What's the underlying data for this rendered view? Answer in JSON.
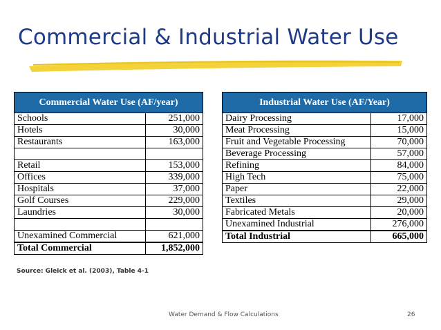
{
  "slide": {
    "title": "Commercial & Industrial Water Use",
    "source": "Source: Gleick et al. (2003), Table 4-1",
    "footer": "Water Demand & Flow Calculations",
    "page_number": "26",
    "colors": {
      "title": "#1f3a86",
      "header_bg": "#1f6ba8",
      "underline": "#f3d23a"
    }
  },
  "commercial": {
    "header": "Commercial Water Use (AF/year)",
    "rows": [
      {
        "label": "Schools",
        "value": "251,000"
      },
      {
        "label": "Hotels",
        "value": "30,000"
      },
      {
        "label": "Restaurants",
        "value": "163,000"
      },
      {
        "label": "",
        "value": ""
      },
      {
        "label": "Retail",
        "value": "153,000"
      },
      {
        "label": "Offices",
        "value": "339,000"
      },
      {
        "label": "Hospitals",
        "value": "37,000"
      },
      {
        "label": "Golf Courses",
        "value": "229,000"
      },
      {
        "label": "Laundries",
        "value": "30,000"
      },
      {
        "label": "",
        "value": ""
      },
      {
        "label": "Unexamined Commercial",
        "value": "621,000"
      }
    ],
    "total": {
      "label": "Total Commercial",
      "value": "1,852,000"
    }
  },
  "industrial": {
    "header": "Industrial Water Use (AF/Year)",
    "rows": [
      {
        "label": "Dairy Processing",
        "value": "17,000"
      },
      {
        "label": "Meat Processing",
        "value": "15,000"
      },
      {
        "label": "Fruit and Vegetable Processing",
        "value": "70,000"
      },
      {
        "label": "Beverage Processing",
        "value": "57,000"
      },
      {
        "label": "Refining",
        "value": "84,000"
      },
      {
        "label": "High Tech",
        "value": "75,000"
      },
      {
        "label": "Paper",
        "value": "22,000"
      },
      {
        "label": "Textiles",
        "value": "29,000"
      },
      {
        "label": "Fabricated Metals",
        "value": "20,000"
      },
      {
        "label": "Unexamined Industrial",
        "value": "276,000"
      }
    ],
    "total": {
      "label": "Total Industrial",
      "value": "665,000"
    }
  }
}
